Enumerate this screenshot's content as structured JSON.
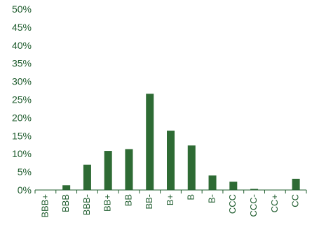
{
  "chart_data": {
    "type": "bar",
    "categories": [
      "BBB+",
      "BBB",
      "BBB-",
      "BB+",
      "BB",
      "BB-",
      "B+",
      "B",
      "B-",
      "CCC",
      "CCC-",
      "CC+",
      "CC"
    ],
    "values": [
      0.0,
      1.3,
      7.0,
      10.8,
      11.3,
      26.6,
      16.4,
      12.3,
      4.0,
      2.3,
      0.3,
      0.0,
      3.1
    ],
    "y_ticks": [
      "0%",
      "5%",
      "10%",
      "15%",
      "20%",
      "25%",
      "30%",
      "35%",
      "40%",
      "45%",
      "50%"
    ],
    "ylim": [
      0,
      50
    ],
    "y_unit": "%",
    "grid": false,
    "bar_color": "#2e6b34",
    "axis_color": "#1f5c2e",
    "text_color": "#1f5c2e"
  }
}
